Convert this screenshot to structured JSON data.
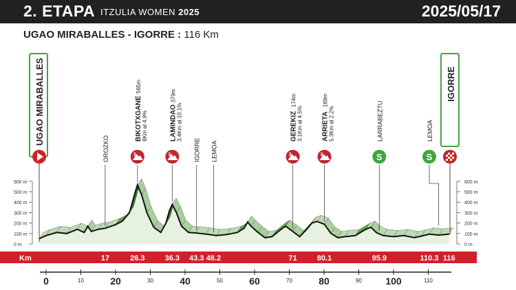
{
  "header": {
    "stage": "2. ETAPA",
    "race": "ITZULIA WOMEN",
    "year": "2025",
    "date": "2025/05/17"
  },
  "route": {
    "title": "UGAO MIRABALLES - IGORRE :",
    "distance": "116 Km"
  },
  "start_label": "UGAO MIRABALLES",
  "finish_label": "IGORRE",
  "km_row_label": "Km",
  "km_marks": [
    "17",
    "26.3",
    "36.3",
    "43.3",
    "48.2",
    "71",
    "80.1",
    "95.9",
    "110.3",
    "116"
  ],
  "points": [
    {
      "name": "OROZKO",
      "km": 17,
      "badge": "none"
    },
    {
      "name": "BIKOTXGANE",
      "alt": "565m",
      "detail": "8Km al 4.9%",
      "km": 26.3,
      "badge": "3"
    },
    {
      "name": "LAMINDAO",
      "alt": "379m",
      "detail": "3.4Km al 10.1%",
      "km": 36.3,
      "badge": "3"
    },
    {
      "name": "IGORRE",
      "km": 43.3,
      "badge": "none"
    },
    {
      "name": "LEMOA",
      "km": 48.2,
      "badge": "none"
    },
    {
      "name": "GEREKIZ",
      "alt": "174m",
      "detail": "3.1Km al 4.5%",
      "km": 71,
      "badge": "3"
    },
    {
      "name": "ARRIETA",
      "alt": "189m",
      "detail": "5.3Km al 2.2%",
      "km": 80.1,
      "badge": "3"
    },
    {
      "name": "LARRABEZTU",
      "km": 95.9,
      "badge": "S"
    },
    {
      "name": "LEMOA",
      "km": 110.3,
      "badge": "S"
    }
  ],
  "elev_ticks": [
    "600 m",
    "500 m",
    "400 m",
    "300 m",
    "200 m",
    "100 m",
    "0 m"
  ],
  "km_axis_ticks": [
    {
      "v": 0,
      "t": "0",
      "major": true
    },
    {
      "v": 10,
      "t": "10",
      "major": false
    },
    {
      "v": 20,
      "t": "20",
      "major": true
    },
    {
      "v": 30,
      "t": "30",
      "major": false
    },
    {
      "v": 40,
      "t": "40",
      "major": true
    },
    {
      "v": 50,
      "t": "50",
      "major": false
    },
    {
      "v": 60,
      "t": "60",
      "major": true
    },
    {
      "v": 70,
      "t": "70",
      "major": false
    },
    {
      "v": 80,
      "t": "80",
      "major": true
    },
    {
      "v": 90,
      "t": "90",
      "major": false
    },
    {
      "v": 100,
      "t": "100",
      "major": true
    },
    {
      "v": 110,
      "t": "110",
      "major": false
    }
  ],
  "badge_s_label": "S",
  "colors": {
    "header_bg": "#232020",
    "strip": "#d0212b",
    "green": "#3ea63c",
    "climb": "#c0262d",
    "profile_fill": "#e6f2df"
  }
}
